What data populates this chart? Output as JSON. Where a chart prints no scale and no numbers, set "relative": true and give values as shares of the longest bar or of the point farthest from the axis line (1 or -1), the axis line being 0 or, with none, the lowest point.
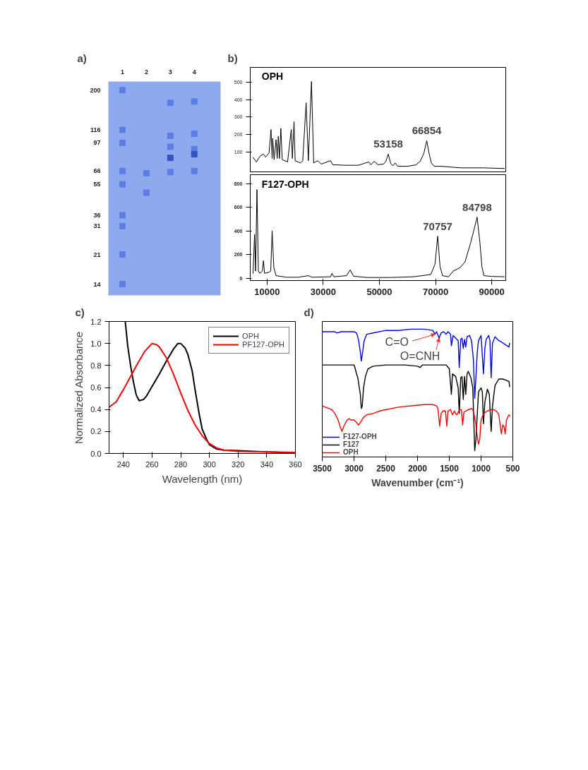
{
  "chart_data": [
    {
      "type": "scatter",
      "title": "a)",
      "marker": "square",
      "categories": [
        "1",
        "2",
        "3",
        "4"
      ],
      "log": "y",
      "ylim": [
        12,
        225
      ],
      "yticks": [
        14,
        21,
        31,
        36,
        55,
        66,
        97,
        116,
        200
      ],
      "series": [
        {
          "color": "#5b7ee6",
          "values": [
            200,
            null,
            168,
            171
          ]
        },
        {
          "color": "#5b7ee6",
          "values": [
            116,
            null,
            107,
            110
          ]
        },
        {
          "color": "#5b7ee6",
          "values": [
            97,
            null,
            92,
            89
          ]
        },
        {
          "color": "#3552c0",
          "values": [
            null,
            null,
            79,
            83
          ]
        },
        {
          "color": "#5b7ee6",
          "values": [
            66,
            64,
            65,
            66
          ]
        },
        {
          "color": "#5b7ee6",
          "values": [
            55,
            49,
            null,
            null
          ]
        },
        {
          "color": "#5b7ee6",
          "values": [
            36,
            null,
            null,
            null
          ]
        },
        {
          "color": "#5b7ee6",
          "values": [
            31,
            null,
            null,
            null
          ]
        },
        {
          "color": "#5b7ee6",
          "values": [
            21,
            null,
            null,
            null
          ]
        },
        {
          "color": "#5b7ee6",
          "values": [
            14,
            null,
            null,
            null
          ]
        }
      ]
    },
    {
      "type": "line",
      "title": "b)",
      "tick_labels": "y",
      "xlim": [
        4000,
        95000
      ],
      "ylim": [
        -15,
        585
      ],
      "yticks": [
        100,
        200,
        300,
        400,
        500
      ],
      "x": [
        5000,
        6200,
        7500,
        8700,
        9500,
        10700,
        11400,
        11800,
        12000,
        12500,
        13200,
        13600,
        14000,
        14400,
        14900,
        15400,
        17300,
        18600,
        19000,
        19600,
        20000,
        21900,
        22700,
        23900,
        24700,
        25800,
        26600,
        28000,
        29300,
        32600,
        33400,
        37500,
        42500,
        46200,
        47000,
        48100,
        49500,
        51500,
        52300,
        53158,
        54000,
        54800,
        55600,
        56500,
        60000,
        63000,
        64500,
        65800,
        66854,
        67700,
        68500,
        69500,
        72000,
        75000,
        79000,
        87000,
        94500
      ],
      "series": [
        {
          "name": "OPH",
          "color": "#000000",
          "values": [
            68,
            42,
            75,
            87,
            70,
            94,
            228,
            62,
            177,
            55,
            170,
            62,
            190,
            62,
            235,
            55,
            42,
            228,
            62,
            273,
            49,
            36,
            49,
            382,
            49,
            504,
            36,
            49,
            30,
            49,
            26,
            23,
            23,
            42,
            26,
            46,
            26,
            30,
            45,
            87,
            35,
            20,
            36,
            17,
            17,
            25,
            45,
            90,
            164,
            90,
            36,
            17,
            17,
            13,
            8,
            8,
            4
          ]
        }
      ],
      "annotations": [
        {
          "text": "53158",
          "x": 53158,
          "y": 87
        },
        {
          "text": "66854",
          "x": 66854,
          "y": 164
        }
      ]
    },
    {
      "type": "line",
      "xlim": [
        4000,
        95000
      ],
      "xticks": [
        10000,
        30000,
        50000,
        70000,
        90000
      ],
      "ylim": [
        -20,
        875
      ],
      "yticks": [
        0,
        200,
        400,
        600,
        800
      ],
      "x": [
        5000,
        5550,
        5900,
        6400,
        6900,
        7400,
        8300,
        8700,
        9100,
        10700,
        11300,
        11800,
        12400,
        13200,
        16900,
        21000,
        24700,
        26000,
        32600,
        33100,
        33800,
        38300,
        39600,
        40800,
        45800,
        54000,
        62200,
        68300,
        69800,
        70757,
        71600,
        72500,
        74600,
        76300,
        78700,
        80500,
        82500,
        83800,
        84798,
        85800,
        86500,
        87200,
        90000,
        94500
      ],
      "series": [
        {
          "name": "F127-OPH",
          "color": "#000000",
          "values": [
            41,
            371,
            60,
            750,
            60,
            41,
            60,
            148,
            41,
            50,
            60,
            400,
            89,
            21,
            8,
            8,
            21,
            8,
            12,
            41,
            12,
            21,
            70,
            16,
            6,
            6,
            12,
            31,
            118,
            355,
            99,
            21,
            12,
            60,
            89,
            138,
            300,
            420,
            516,
            300,
            99,
            21,
            15,
            12
          ]
        }
      ],
      "annotations": [
        {
          "text": "70757",
          "x": 70757,
          "y": 355
        },
        {
          "text": "84798",
          "x": 84798,
          "y": 516
        }
      ]
    },
    {
      "type": "line",
      "title": "c)",
      "xlabel": "Wavelength (nm)",
      "ylabel": "Normalized Absorbance",
      "xlim": [
        230,
        360
      ],
      "xticks": [
        240,
        260,
        280,
        300,
        320,
        340,
        360
      ],
      "ylim": [
        0,
        1.2
      ],
      "yticks": [
        {
          "value": 0,
          "label": "0.0"
        },
        0.2,
        0.4,
        0.6,
        0.8,
        {
          "value": 1,
          "label": "1.0"
        },
        1.2
      ],
      "legend": "top right",
      "series": [
        {
          "name": "OPH",
          "color": "#000000",
          "x": [
            241.3,
            243,
            245,
            247,
            249,
            251,
            254,
            256,
            260,
            265,
            270,
            275,
            278,
            280,
            283,
            285,
            288,
            290,
            293,
            295,
            298,
            300,
            305,
            310,
            320,
            330,
            340,
            350,
            360
          ],
          "values": [
            1.2,
            0.98,
            0.8,
            0.65,
            0.53,
            0.48,
            0.49,
            0.52,
            0.61,
            0.72,
            0.84,
            0.95,
            1.0,
            1.0,
            0.96,
            0.9,
            0.75,
            0.58,
            0.35,
            0.22,
            0.13,
            0.08,
            0.04,
            0.03,
            0.025,
            0.02,
            0.015,
            0.01,
            0.01
          ]
        },
        {
          "name": "PF127-OPH",
          "color": "#ff0000",
          "x": [
            230,
            235,
            240,
            245,
            250,
            255,
            260,
            263,
            265,
            270,
            275,
            280,
            285,
            290,
            295,
            300,
            305,
            310,
            320,
            340,
            360
          ],
          "values": [
            0.42,
            0.47,
            0.58,
            0.7,
            0.82,
            0.93,
            1.0,
            0.99,
            0.97,
            0.87,
            0.72,
            0.55,
            0.39,
            0.26,
            0.16,
            0.09,
            0.05,
            0.03,
            0.02,
            0.015,
            0.01
          ]
        }
      ]
    },
    {
      "type": "line",
      "title": "d)",
      "xlabel": "Wavenumber (cm⁻¹)",
      "relative": true,
      "tick_labels": "x",
      "xlim": [
        3500,
        500
      ],
      "xticks": [
        3500,
        3000,
        2500,
        2000,
        1500,
        1000,
        500
      ],
      "legend": "bottom left",
      "series": [
        {
          "name": "F127-OPH",
          "color": "#0000ff",
          "x": [
            3500,
            3400,
            3300,
            3270,
            3200,
            3000,
            2960,
            2930,
            2900,
            2885,
            2870,
            2840,
            2800,
            2700,
            2500,
            2300,
            2100,
            1900,
            1760,
            1725,
            1700,
            1660,
            1630,
            1590,
            1550,
            1520,
            1480,
            1467,
            1440,
            1400,
            1360,
            1343,
            1320,
            1300,
            1280,
            1260,
            1241,
            1220,
            1180,
            1150,
            1120,
            1100,
            1080,
            1060,
            1040,
            1000,
            962,
            940,
            920,
            880,
            860,
            841,
            820,
            780,
            720,
            680,
            620,
            560,
            550
          ],
          "values": [
            0.98,
            0.98,
            0.98,
            0.97,
            0.98,
            0.98,
            0.97,
            0.92,
            0.82,
            0.75,
            0.8,
            0.91,
            0.96,
            0.97,
            0.99,
            0.99,
            1.0,
            1.0,
            0.99,
            0.96,
            0.98,
            0.93,
            0.97,
            0.98,
            0.96,
            0.98,
            0.96,
            0.87,
            0.95,
            0.93,
            0.91,
            0.7,
            0.92,
            0.93,
            0.85,
            0.92,
            0.86,
            0.94,
            0.95,
            0.91,
            0.76,
            0.46,
            0.63,
            0.82,
            0.91,
            0.95,
            0.65,
            0.85,
            0.92,
            0.95,
            0.91,
            0.62,
            0.89,
            0.94,
            0.91,
            0.9,
            0.88,
            0.86,
            0.89
          ]
        },
        {
          "name": "F127",
          "color": "#000000",
          "x": [
            3500,
            3200,
            3000,
            2980,
            2960,
            2940,
            2900,
            2885,
            2870,
            2850,
            2820,
            2780,
            2700,
            2500,
            2200,
            2000,
            1960,
            1920,
            1750,
            1550,
            1500,
            1467,
            1450,
            1400,
            1360,
            1343,
            1320,
            1300,
            1280,
            1260,
            1241,
            1220,
            1200,
            1160,
            1130,
            1110,
            1100,
            1080,
            1060,
            1040,
            1000,
            980,
            962,
            940,
            900,
            870,
            841,
            820,
            780,
            720,
            660,
            600,
            560,
            550
          ],
          "values": [
            0.72,
            0.72,
            0.72,
            0.69,
            0.65,
            0.62,
            0.49,
            0.38,
            0.4,
            0.54,
            0.63,
            0.69,
            0.71,
            0.72,
            0.72,
            0.71,
            0.7,
            0.72,
            0.72,
            0.72,
            0.69,
            0.49,
            0.65,
            0.63,
            0.54,
            0.34,
            0.62,
            0.63,
            0.45,
            0.63,
            0.49,
            0.65,
            0.67,
            0.62,
            0.54,
            0.22,
            0.05,
            0.14,
            0.33,
            0.51,
            0.54,
            0.51,
            0.26,
            0.43,
            0.53,
            0.49,
            0.2,
            0.4,
            0.56,
            0.61,
            0.61,
            0.6,
            0.59,
            0.55
          ]
        },
        {
          "name": "OPH",
          "color": "#ff0000",
          "x": [
            3500,
            3450,
            3400,
            3350,
            3300,
            3250,
            3220,
            3190,
            3160,
            3120,
            3080,
            3050,
            3000,
            2960,
            2930,
            2900,
            2850,
            2800,
            2700,
            2600,
            2500,
            2300,
            2100,
            1900,
            1760,
            1700,
            1680,
            1650,
            1630,
            1600,
            1560,
            1540,
            1520,
            1480,
            1450,
            1420,
            1400,
            1380,
            1340,
            1310,
            1290,
            1270,
            1240,
            1200,
            1150,
            1120,
            1100,
            1080,
            1060,
            1040,
            1020,
            1000,
            960,
            900,
            850,
            800,
            760,
            720,
            700,
            680,
            660,
            640,
            620,
            600,
            560,
            550
          ],
          "values": [
            0.4,
            0.39,
            0.38,
            0.37,
            0.34,
            0.29,
            0.24,
            0.2,
            0.24,
            0.28,
            0.3,
            0.29,
            0.29,
            0.27,
            0.25,
            0.27,
            0.31,
            0.33,
            0.34,
            0.36,
            0.37,
            0.39,
            0.4,
            0.41,
            0.41,
            0.4,
            0.38,
            0.24,
            0.34,
            0.36,
            0.36,
            0.24,
            0.36,
            0.37,
            0.33,
            0.36,
            0.34,
            0.33,
            0.37,
            0.37,
            0.25,
            0.35,
            0.36,
            0.37,
            0.38,
            0.36,
            0.31,
            0.25,
            0.16,
            0.1,
            0.14,
            0.29,
            0.34,
            0.36,
            0.37,
            0.37,
            0.36,
            0.33,
            0.25,
            0.18,
            0.25,
            0.24,
            0.18,
            0.29,
            0.33,
            0.32
          ]
        }
      ],
      "annotations": [
        {
          "text": "C=O",
          "x": 1725,
          "y": 0.96
        },
        {
          "text": "O=CNH",
          "x": 1660,
          "y": 0.93
        }
      ]
    }
  ]
}
